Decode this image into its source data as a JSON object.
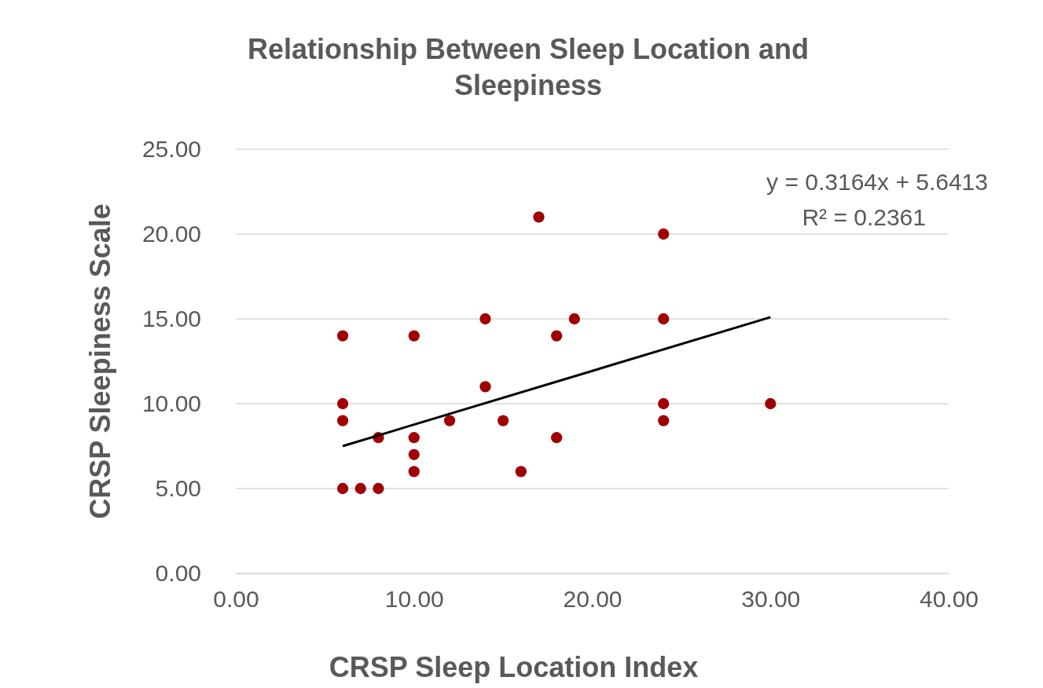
{
  "chart_data": {
    "type": "scatter",
    "title": "Relationship Between Sleep Location and Sleepiness",
    "xlabel": "CRSP Sleep Location Index",
    "ylabel": "CRSP Sleepiness Scale",
    "xlim": [
      0,
      40
    ],
    "xticks": [
      {
        "value": 0,
        "label": "0.00"
      },
      {
        "value": 10,
        "label": "10.00"
      },
      {
        "value": 20,
        "label": "20.00"
      },
      {
        "value": 30,
        "label": "30.00"
      },
      {
        "value": 40,
        "label": "40.00"
      }
    ],
    "ylim": [
      0,
      25
    ],
    "yticks": [
      {
        "value": 0,
        "label": "0.00"
      },
      {
        "value": 5,
        "label": "5.00"
      },
      {
        "value": 10,
        "label": "10.00"
      },
      {
        "value": 15,
        "label": "15.00"
      },
      {
        "value": 20,
        "label": "20.00"
      },
      {
        "value": 25,
        "label": "25.00"
      }
    ],
    "grid": "y",
    "annotations": [
      "y = 0.3164x + 5.6413",
      "R² = 0.2361"
    ],
    "series": [
      {
        "marker": "circle",
        "color": "#a00000",
        "x": [
          6,
          6,
          6,
          6,
          7,
          8,
          8,
          10,
          10,
          10,
          10,
          12,
          14,
          14,
          15,
          16,
          17,
          18,
          18,
          19,
          24,
          24,
          24,
          24,
          30
        ],
        "values": [
          14,
          10,
          9,
          5,
          5,
          5,
          8,
          14,
          8,
          7,
          6,
          9,
          15,
          11,
          9,
          6,
          21,
          14,
          8,
          15,
          20,
          15,
          10,
          9,
          10
        ]
      },
      {
        "type": "line",
        "marker": "none",
        "color": "#000000",
        "x": [
          6,
          30
        ],
        "values": [
          7.5,
          15.1
        ]
      }
    ]
  }
}
